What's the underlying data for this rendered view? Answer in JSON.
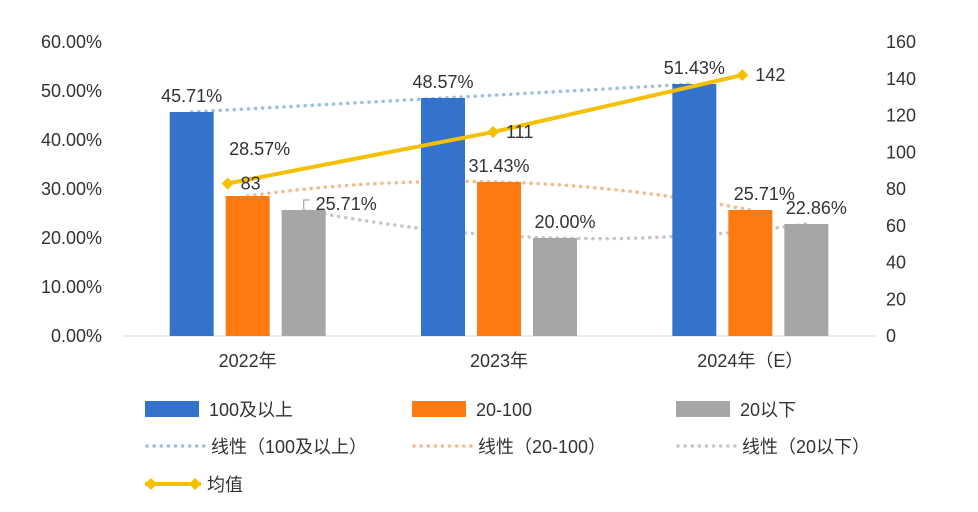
{
  "chart_data": {
    "type": "bar",
    "categories": [
      "2022年",
      "2023年",
      "2024年（E）"
    ],
    "series": [
      {
        "name": "100及以上",
        "color": "#3373CC",
        "values": [
          45.71,
          48.57,
          51.43
        ],
        "labels": [
          "45.71%",
          "48.57%",
          "51.43%"
        ]
      },
      {
        "name": "20-100",
        "color": "#FF7A10",
        "values": [
          28.57,
          31.43,
          25.71
        ],
        "labels": [
          "28.57%",
          "31.43%",
          "25.71%"
        ]
      },
      {
        "name": "20以下",
        "color": "#A6A6A6",
        "values": [
          25.71,
          20.0,
          22.86
        ],
        "labels": [
          "25.71%",
          "20.00%",
          "22.86%"
        ]
      }
    ],
    "trendlines": [
      {
        "name": "线性（100及以上）",
        "color": "#9DBEEA",
        "series_index": 0
      },
      {
        "name": "线性（20-100）",
        "color": "#F6B98B",
        "series_index": 1
      },
      {
        "name": "线性（20以下）",
        "color": "#C6C6C6",
        "series_index": 2
      }
    ],
    "line": {
      "name": "均值",
      "color": "#F5C000",
      "axis": "right",
      "values": [
        83,
        111,
        142
      ],
      "labels": [
        "83",
        "111",
        "142"
      ]
    },
    "y_left": {
      "min": 0,
      "max": 60,
      "ticks": [
        "0.00%",
        "10.00%",
        "20.00%",
        "30.00%",
        "40.00%",
        "50.00%",
        "60.00%"
      ]
    },
    "y_right": {
      "min": 0,
      "max": 160,
      "ticks": [
        "0",
        "20",
        "40",
        "60",
        "80",
        "100",
        "120",
        "140",
        "160"
      ]
    },
    "legend": [
      {
        "label": "100及以上",
        "kind": "bar",
        "color": "#3373CC"
      },
      {
        "label": "20-100",
        "kind": "bar",
        "color": "#FF7A10"
      },
      {
        "label": "20以下",
        "kind": "bar",
        "color": "#A6A6A6"
      },
      {
        "label": "线性（100及以上）",
        "kind": "dotted",
        "color": "#9DBEEA"
      },
      {
        "label": "线性（20-100）",
        "kind": "dotted",
        "color": "#F6B98B"
      },
      {
        "label": "线性（20以下）",
        "kind": "dotted",
        "color": "#C6C6C6"
      },
      {
        "label": "均值",
        "kind": "line",
        "color": "#F5C000"
      }
    ],
    "legend_position": "bottom"
  }
}
